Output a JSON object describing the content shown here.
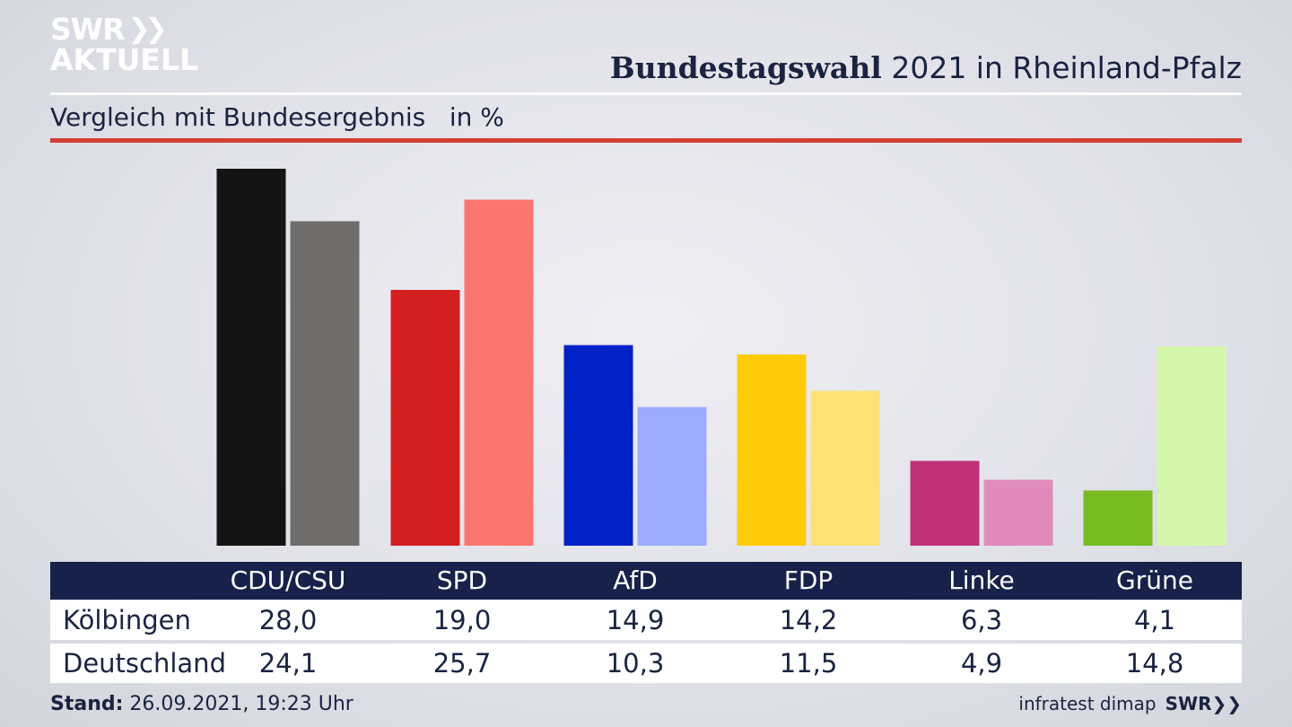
{
  "logo": {
    "line1": "SWR",
    "line2": "AKTUELL"
  },
  "header": {
    "title_bold": "Bundestagswahl",
    "title_rest": " 2021 in Rheinland-Pfalz"
  },
  "subtitle": "Vergleich mit Bundesergebnis   in %",
  "table": {
    "row_labels": [
      "Kölbingen",
      "Deutschland"
    ],
    "kolbingen_values": [
      "28,0",
      "19,0",
      "14,9",
      "14,2",
      "6,3",
      "4,1"
    ],
    "deutschland_values": [
      "24,1",
      "25,7",
      "10,3",
      "11,5",
      "4,9",
      "14,8"
    ]
  },
  "footer": {
    "stand_label": "Stand:",
    "stand_value": " 26.09.2021, 19:23 Uhr",
    "source": "infratest dimap",
    "brand": "SWR"
  },
  "chart_data": {
    "type": "bar",
    "categories": [
      "CDU/CSU",
      "SPD",
      "AfD",
      "FDP",
      "Linke",
      "Grüne"
    ],
    "series": [
      {
        "name": "Kölbingen",
        "values": [
          28.0,
          19.0,
          14.9,
          14.2,
          6.3,
          4.1
        ],
        "colors": [
          "#141414",
          "#d41f21",
          "#0222c8",
          "#ffcc0a",
          "#be3178",
          "#78bb22"
        ]
      },
      {
        "name": "Deutschland",
        "values": [
          24.1,
          25.7,
          10.3,
          11.5,
          4.9,
          14.8
        ],
        "colors": [
          "#706e6c",
          "#fd7570",
          "#9eaafe",
          "#fde173",
          "#e18bbc",
          "#d5f6ab"
        ]
      }
    ],
    "ylim": [
      0,
      28.0
    ],
    "grid": false,
    "legend": "table-below"
  }
}
